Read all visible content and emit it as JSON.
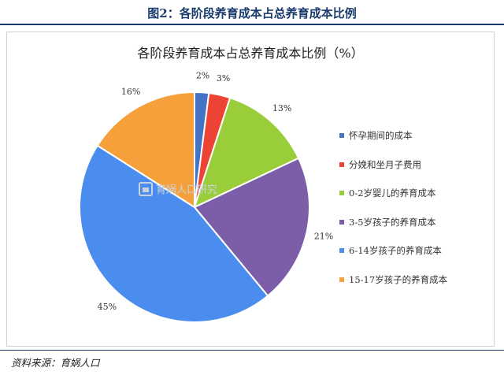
{
  "figure_caption": "图2：各阶段养育成本占总养育成本比例",
  "source_note": "资料来源：育娲人口",
  "watermark": "育娲人口研究",
  "chart_data": {
    "type": "pie",
    "title": "各阶段养育成本占总养育成本比例（%）",
    "unit": "%",
    "legend_position": "right",
    "categories": [
      "怀孕期间的成本",
      "分娩和坐月子费用",
      "0-2岁婴儿的养育成本",
      "3-5岁孩子的养育成本",
      "6-14岁孩子的养育成本",
      "15-17岁孩子的养育成本"
    ],
    "values": [
      2,
      3,
      13,
      21,
      45,
      16
    ],
    "value_labels": [
      "2%",
      "3%",
      "13%",
      "21%",
      "45%",
      "16%"
    ],
    "colors": [
      "#4472c4",
      "#ed4334",
      "#9acd3a",
      "#7b5ea7",
      "#4b8def",
      "#f5a03a"
    ]
  }
}
